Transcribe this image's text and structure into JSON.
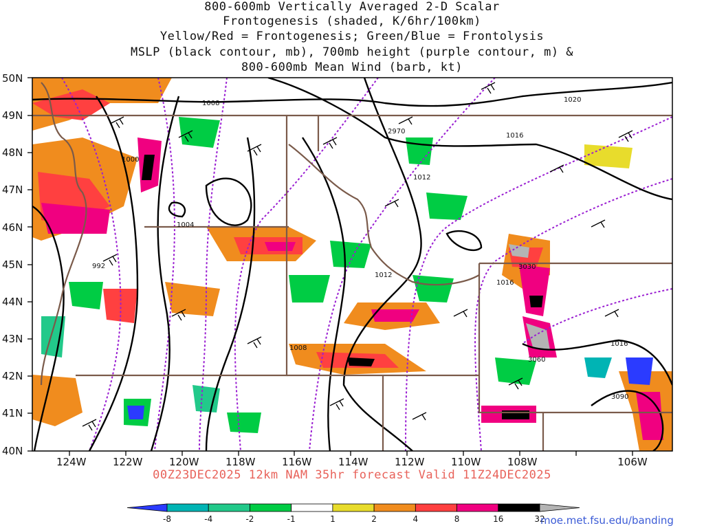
{
  "title": {
    "line1": "800-600mb Vertically Averaged 2-D Scalar",
    "line2": "Frontogenesis (shaded, K/6hr/100km)",
    "line3": "Yellow/Red = Frontogenesis;  Green/Blue = Frontolysis",
    "line4": "MSLP (black contour, mb), 700mb height (purple contour, m) &",
    "line5": "800-600mb Mean Wind (barb, kt)"
  },
  "valid_text": "00Z23DEC2025 12km NAM 35hr forecast Valid 11Z24DEC2025",
  "credit": "moe.met.fsu.edu/banding",
  "map": {
    "lat_labels": [
      "50N",
      "49N",
      "48N",
      "47N",
      "46N",
      "45N",
      "44N",
      "43N",
      "42N",
      "41N",
      "40N"
    ],
    "lon_labels": [
      "124W",
      "122W",
      "120W",
      "118W",
      "116W",
      "114W",
      "112W",
      "110W",
      "108W",
      "106W"
    ],
    "contour_labels": [
      {
        "text": "1008",
        "kind": "mslp"
      },
      {
        "text": "1020",
        "kind": "mslp"
      },
      {
        "text": "2970",
        "kind": "height"
      },
      {
        "text": "1016",
        "kind": "mslp"
      },
      {
        "text": "1000",
        "kind": "mslp"
      },
      {
        "text": "1012",
        "kind": "mslp"
      },
      {
        "text": "1004",
        "kind": "mslp"
      },
      {
        "text": "992",
        "kind": "mslp"
      },
      {
        "text": "1012",
        "kind": "mslp"
      },
      {
        "text": "3030",
        "kind": "height"
      },
      {
        "text": "1016",
        "kind": "mslp"
      },
      {
        "text": "1008",
        "kind": "mslp"
      },
      {
        "text": "1016",
        "kind": "mslp"
      },
      {
        "text": "3060",
        "kind": "height"
      },
      {
        "text": "3090",
        "kind": "height"
      }
    ]
  },
  "colorbar": {
    "labels": [
      "-8",
      "-4",
      "-2",
      "-1",
      "1",
      "2",
      "4",
      "8",
      "16",
      "32"
    ],
    "colors": [
      "#2b3bff",
      "#00b4b4",
      "#22c98a",
      "#00cc44",
      "#ffffff",
      "#e8dc2c",
      "#f08c1e",
      "#ff4040",
      "#f00080",
      "#000000",
      "#b4b4b4"
    ]
  }
}
